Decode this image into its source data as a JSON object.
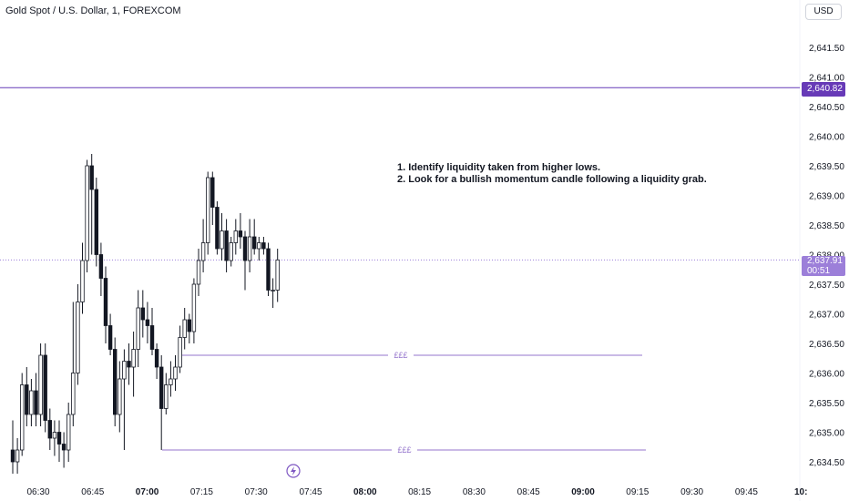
{
  "header": {
    "symbol": "Gold Spot / U.S. Dollar, 1, FOREXCOM",
    "currency": "USD"
  },
  "note": {
    "line1": "1. Identify liquidity taken from higher lows.",
    "line2": "2. Look for a bullish momentum candle following a liquidity grab."
  },
  "price_axis": {
    "ticks": [
      "2,641.50",
      "2,641.00",
      "2,640.50",
      "2,640.00",
      "2,639.50",
      "2,639.00",
      "2,638.50",
      "2,638.00",
      "2,637.50",
      "2,637.00",
      "2,636.50",
      "2,636.00",
      "2,635.50",
      "2,635.00",
      "2,634.50"
    ],
    "tick_values": [
      2641.5,
      2641.0,
      2640.5,
      2640.0,
      2639.5,
      2639.0,
      2638.5,
      2638.0,
      2637.5,
      2637.0,
      2636.5,
      2636.0,
      2635.5,
      2635.0,
      2634.5
    ]
  },
  "time_axis": {
    "labels": [
      {
        "text": "06:30",
        "bold": false
      },
      {
        "text": "06:45",
        "bold": false
      },
      {
        "text": "07:00",
        "bold": true
      },
      {
        "text": "07:15",
        "bold": false
      },
      {
        "text": "07:30",
        "bold": false
      },
      {
        "text": "07:45",
        "bold": false
      },
      {
        "text": "08:00",
        "bold": true
      },
      {
        "text": "08:15",
        "bold": false
      },
      {
        "text": "08:30",
        "bold": false
      },
      {
        "text": "08:45",
        "bold": false
      },
      {
        "text": "09:00",
        "bold": true
      },
      {
        "text": "09:15",
        "bold": false
      },
      {
        "text": "09:30",
        "bold": false
      },
      {
        "text": "09:45",
        "bold": false
      },
      {
        "text": "10:",
        "bold": true
      }
    ]
  },
  "price_tags": {
    "horizontal_line": "2,640.82",
    "current_price": "2,637.91",
    "countdown": "00:51"
  },
  "levels": {
    "upper_label": "£££",
    "lower_label": "£££",
    "upper_price": 2636.3,
    "lower_price": 2634.7,
    "horizontal_price": 2640.82,
    "current_price": 2637.91
  },
  "colors": {
    "accent": "#673ab7",
    "accent_light": "#9c7fd9",
    "level_line": "#9575cd",
    "candle": "#131722"
  },
  "icons": {
    "flash": "lightning-bolt-icon"
  },
  "chart_data": {
    "type": "candlestick",
    "ylim": [
      2634.3,
      2641.9
    ],
    "candles": [
      {
        "o": 2634.7,
        "h": 2635.2,
        "l": 2634.3,
        "c": 2634.5
      },
      {
        "o": 2634.5,
        "h": 2634.9,
        "l": 2634.3,
        "c": 2634.7
      },
      {
        "o": 2634.7,
        "h": 2636.0,
        "l": 2634.6,
        "c": 2635.8
      },
      {
        "o": 2635.8,
        "h": 2636.1,
        "l": 2635.1,
        "c": 2635.3
      },
      {
        "o": 2635.3,
        "h": 2635.9,
        "l": 2635.1,
        "c": 2635.7
      },
      {
        "o": 2635.7,
        "h": 2636.0,
        "l": 2635.1,
        "c": 2635.3
      },
      {
        "o": 2635.3,
        "h": 2636.5,
        "l": 2635.1,
        "c": 2636.3
      },
      {
        "o": 2636.3,
        "h": 2636.5,
        "l": 2635.0,
        "c": 2635.2
      },
      {
        "o": 2635.2,
        "h": 2635.4,
        "l": 2634.7,
        "c": 2634.9
      },
      {
        "o": 2634.9,
        "h": 2635.2,
        "l": 2634.6,
        "c": 2635.0
      },
      {
        "o": 2635.0,
        "h": 2635.2,
        "l": 2634.5,
        "c": 2634.8
      },
      {
        "o": 2634.8,
        "h": 2635.0,
        "l": 2634.4,
        "c": 2634.7
      },
      {
        "o": 2634.7,
        "h": 2635.5,
        "l": 2634.5,
        "c": 2635.3
      },
      {
        "o": 2635.3,
        "h": 2637.2,
        "l": 2635.1,
        "c": 2636.0
      },
      {
        "o": 2636.0,
        "h": 2637.5,
        "l": 2635.8,
        "c": 2637.2
      },
      {
        "o": 2637.2,
        "h": 2638.2,
        "l": 2637.0,
        "c": 2637.9
      },
      {
        "o": 2637.9,
        "h": 2639.6,
        "l": 2637.7,
        "c": 2639.5
      },
      {
        "o": 2639.5,
        "h": 2639.7,
        "l": 2638.0,
        "c": 2639.1
      },
      {
        "o": 2639.1,
        "h": 2639.3,
        "l": 2637.8,
        "c": 2638.0
      },
      {
        "o": 2638.0,
        "h": 2638.2,
        "l": 2637.3,
        "c": 2637.6
      },
      {
        "o": 2637.6,
        "h": 2637.8,
        "l": 2636.5,
        "c": 2636.8
      },
      {
        "o": 2636.8,
        "h": 2637.0,
        "l": 2636.3,
        "c": 2636.4
      },
      {
        "o": 2636.4,
        "h": 2636.6,
        "l": 2635.1,
        "c": 2635.3
      },
      {
        "o": 2635.3,
        "h": 2636.2,
        "l": 2635.0,
        "c": 2635.9
      },
      {
        "o": 2635.9,
        "h": 2636.4,
        "l": 2634.7,
        "c": 2636.2
      },
      {
        "o": 2636.2,
        "h": 2636.5,
        "l": 2635.8,
        "c": 2636.1
      },
      {
        "o": 2636.1,
        "h": 2636.7,
        "l": 2635.6,
        "c": 2636.4
      },
      {
        "o": 2636.4,
        "h": 2637.4,
        "l": 2636.1,
        "c": 2637.1
      },
      {
        "o": 2637.1,
        "h": 2637.4,
        "l": 2636.6,
        "c": 2636.9
      },
      {
        "o": 2636.9,
        "h": 2637.2,
        "l": 2636.5,
        "c": 2636.8
      },
      {
        "o": 2636.8,
        "h": 2637.1,
        "l": 2636.3,
        "c": 2636.4
      },
      {
        "o": 2636.4,
        "h": 2636.5,
        "l": 2635.9,
        "c": 2636.1
      },
      {
        "o": 2636.1,
        "h": 2636.3,
        "l": 2634.7,
        "c": 2635.4
      },
      {
        "o": 2635.4,
        "h": 2636.0,
        "l": 2635.3,
        "c": 2635.8
      },
      {
        "o": 2635.8,
        "h": 2636.2,
        "l": 2635.6,
        "c": 2635.9
      },
      {
        "o": 2635.9,
        "h": 2636.3,
        "l": 2635.7,
        "c": 2636.1
      },
      {
        "o": 2636.1,
        "h": 2636.8,
        "l": 2636.0,
        "c": 2636.6
      },
      {
        "o": 2636.6,
        "h": 2637.1,
        "l": 2636.4,
        "c": 2636.9
      },
      {
        "o": 2636.9,
        "h": 2637.0,
        "l": 2636.5,
        "c": 2636.7
      },
      {
        "o": 2636.7,
        "h": 2637.6,
        "l": 2636.5,
        "c": 2637.5
      },
      {
        "o": 2637.5,
        "h": 2638.1,
        "l": 2637.3,
        "c": 2637.9
      },
      {
        "o": 2637.9,
        "h": 2638.6,
        "l": 2637.7,
        "c": 2638.2
      },
      {
        "o": 2638.2,
        "h": 2639.4,
        "l": 2638.0,
        "c": 2639.3
      },
      {
        "o": 2639.3,
        "h": 2639.4,
        "l": 2638.5,
        "c": 2638.8
      },
      {
        "o": 2638.8,
        "h": 2638.9,
        "l": 2638.0,
        "c": 2638.1
      },
      {
        "o": 2638.1,
        "h": 2638.7,
        "l": 2637.9,
        "c": 2638.4
      },
      {
        "o": 2638.4,
        "h": 2638.6,
        "l": 2637.7,
        "c": 2637.9
      },
      {
        "o": 2637.9,
        "h": 2638.3,
        "l": 2637.8,
        "c": 2638.2
      },
      {
        "o": 2638.2,
        "h": 2638.6,
        "l": 2638.0,
        "c": 2638.4
      },
      {
        "o": 2638.4,
        "h": 2638.7,
        "l": 2638.1,
        "c": 2638.3
      },
      {
        "o": 2638.3,
        "h": 2638.4,
        "l": 2637.4,
        "c": 2637.9
      },
      {
        "o": 2637.9,
        "h": 2638.6,
        "l": 2637.7,
        "c": 2638.3
      },
      {
        "o": 2638.3,
        "h": 2638.6,
        "l": 2638.0,
        "c": 2638.1
      },
      {
        "o": 2638.1,
        "h": 2638.3,
        "l": 2637.9,
        "c": 2638.2
      },
      {
        "o": 2638.2,
        "h": 2638.3,
        "l": 2638.0,
        "c": 2638.1
      },
      {
        "o": 2638.1,
        "h": 2638.2,
        "l": 2637.3,
        "c": 2637.4
      },
      {
        "o": 2637.4,
        "h": 2637.6,
        "l": 2637.1,
        "c": 2637.4
      },
      {
        "o": 2637.4,
        "h": 2638.1,
        "l": 2637.2,
        "c": 2637.91
      }
    ]
  }
}
